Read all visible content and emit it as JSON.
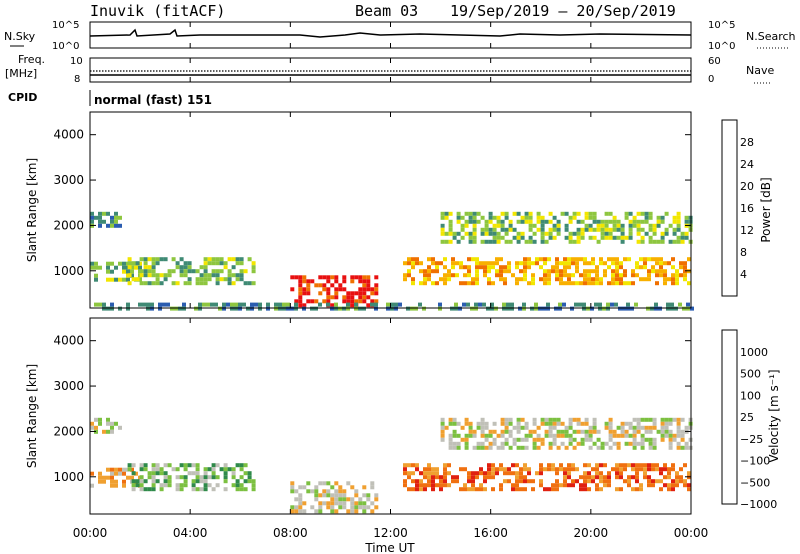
{
  "header": {
    "station": "Inuvik (fitACF)",
    "beam": "Beam 03",
    "date_range": "19/Sep/2019 – 20/Sep/2019"
  },
  "top_panels": {
    "nsky_label": "N.Sky",
    "nsky_ticks": [
      "10^5",
      "10^0"
    ],
    "nsearch_label": "N.Search",
    "nsearch_ticks": [
      "10^5",
      "10^0"
    ],
    "freq_label_line1": "Freq.",
    "freq_label_line2": "[MHz]",
    "freq_ticks": [
      "10",
      "8"
    ],
    "nave_label": "Nave",
    "nave_ticks": [
      "60",
      "0"
    ],
    "cpid_label": "CPID",
    "cpid_text": "normal (fast) 151"
  },
  "chart_data": [
    {
      "type": "heatmap",
      "name": "power",
      "ylabel": "Slant Range [km]",
      "yticks": [
        "1000",
        "2000",
        "3000",
        "4000"
      ],
      "ylim": [
        180,
        4500
      ],
      "colorbar_label": "Power [dB]",
      "colorbar_ticks": [
        "4",
        "8",
        "12",
        "16",
        "20",
        "24",
        "28"
      ],
      "colors": [
        "#1a2ed8",
        "#2a5cb0",
        "#3f8a74",
        "#8ec63f",
        "#f2e600",
        "#f8b000",
        "#f07000",
        "#e81010"
      ],
      "echo_regions": [
        {
          "t0": 0.0,
          "t1": 1.2,
          "r0": 2000,
          "r1": 2300,
          "level": 2
        },
        {
          "t0": 0.0,
          "t1": 2.0,
          "r0": 800,
          "r1": 1200,
          "level": 3
        },
        {
          "t0": 1.5,
          "t1": 6.5,
          "r0": 700,
          "r1": 1300,
          "level": 3
        },
        {
          "t0": 8.0,
          "t1": 11.5,
          "r0": 200,
          "r1": 900,
          "level": 7
        },
        {
          "t0": 12.5,
          "t1": 24.0,
          "r0": 750,
          "r1": 1300,
          "level": 5
        },
        {
          "t0": 14.0,
          "t1": 24.0,
          "r0": 1600,
          "r1": 2300,
          "level": 3
        },
        {
          "t0": 0.0,
          "t1": 24.0,
          "r0": 180,
          "r1": 300,
          "level": 2
        }
      ]
    },
    {
      "type": "heatmap",
      "name": "velocity",
      "ylabel": "Slant Range [km]",
      "yticks": [
        "1000",
        "2000",
        "3000",
        "4000"
      ],
      "ylim": [
        180,
        4500
      ],
      "colorbar_label": "Velocity [m s⁻¹]",
      "colorbar_ticks": [
        "1000",
        "500",
        "100",
        "25",
        "−25",
        "−100",
        "−500",
        "−1000"
      ],
      "colors": [
        "#1a3ad0",
        "#2e6fae",
        "#2f8a4a",
        "#7cc040",
        "#c0c0b8",
        "#f0a030",
        "#f07010",
        "#e02010"
      ],
      "echo_regions": [
        {
          "t0": 0.0,
          "t1": 1.2,
          "r0": 2000,
          "r1": 2300,
          "level": 4
        },
        {
          "t0": 0.0,
          "t1": 2.0,
          "r0": 800,
          "r1": 1200,
          "level": 5
        },
        {
          "t0": 1.5,
          "t1": 6.5,
          "r0": 700,
          "r1": 1300,
          "level": 3
        },
        {
          "t0": 8.0,
          "t1": 11.5,
          "r0": 200,
          "r1": 900,
          "level": 4
        },
        {
          "t0": 12.5,
          "t1": 24.0,
          "r0": 750,
          "r1": 1300,
          "level": 6
        },
        {
          "t0": 14.0,
          "t1": 24.0,
          "r0": 1600,
          "r1": 2300,
          "level": 4
        }
      ]
    }
  ],
  "xaxis": {
    "label": "Time UT",
    "ticks": [
      "00:00",
      "04:00",
      "08:00",
      "12:00",
      "16:00",
      "20:00",
      "00:00"
    ],
    "range_hours": [
      0,
      24
    ]
  }
}
